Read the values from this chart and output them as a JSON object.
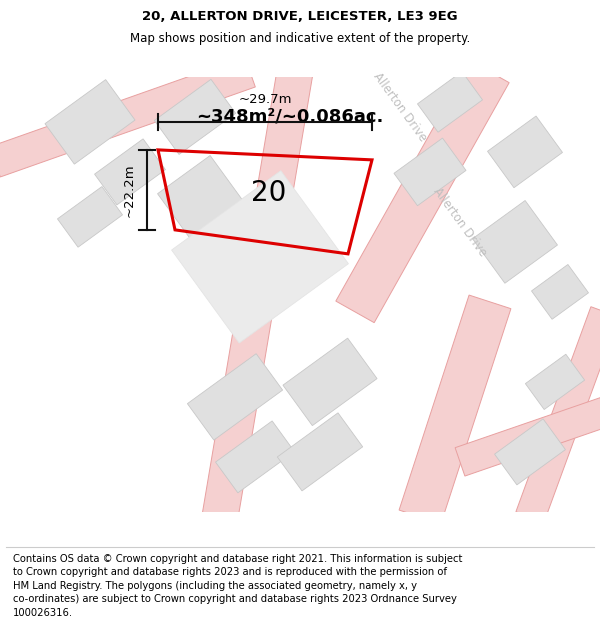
{
  "title": "20, ALLERTON DRIVE, LEICESTER, LE3 9EG",
  "subtitle": "Map shows position and indicative extent of the property.",
  "footer_lines": [
    "Contains OS data © Crown copyright and database right 2021. This information is subject",
    "to Crown copyright and database rights 2023 and is reproduced with the permission of",
    "HM Land Registry. The polygons (including the associated geometry, namely x, y",
    "co-ordinates) are subject to Crown copyright and database rights 2023 Ordnance Survey",
    "100026316."
  ],
  "area_label": "~348m²/~0.086ac.",
  "width_label": "~29.7m",
  "height_label": "~22.2m",
  "plot_number": "20",
  "map_bg": "#f7f7f7",
  "road_fill": "#f5d0d0",
  "road_edge": "#e8a0a0",
  "road_center": "#f0c0c0",
  "block_fill": "#e0e0e0",
  "block_edge": "#c8c8c8",
  "plot_fill": "#ebebeb",
  "plot_edge_fill": "#e4e4e4",
  "red_color": "#dd0000",
  "dim_color": "#111111",
  "label_color": "#c0c0c0",
  "title_fontsize": 9.5,
  "subtitle_fontsize": 8.5,
  "footer_fontsize": 7.2,
  "area_fontsize": 13,
  "dim_fontsize": 9.5,
  "plot_num_fontsize": 20
}
